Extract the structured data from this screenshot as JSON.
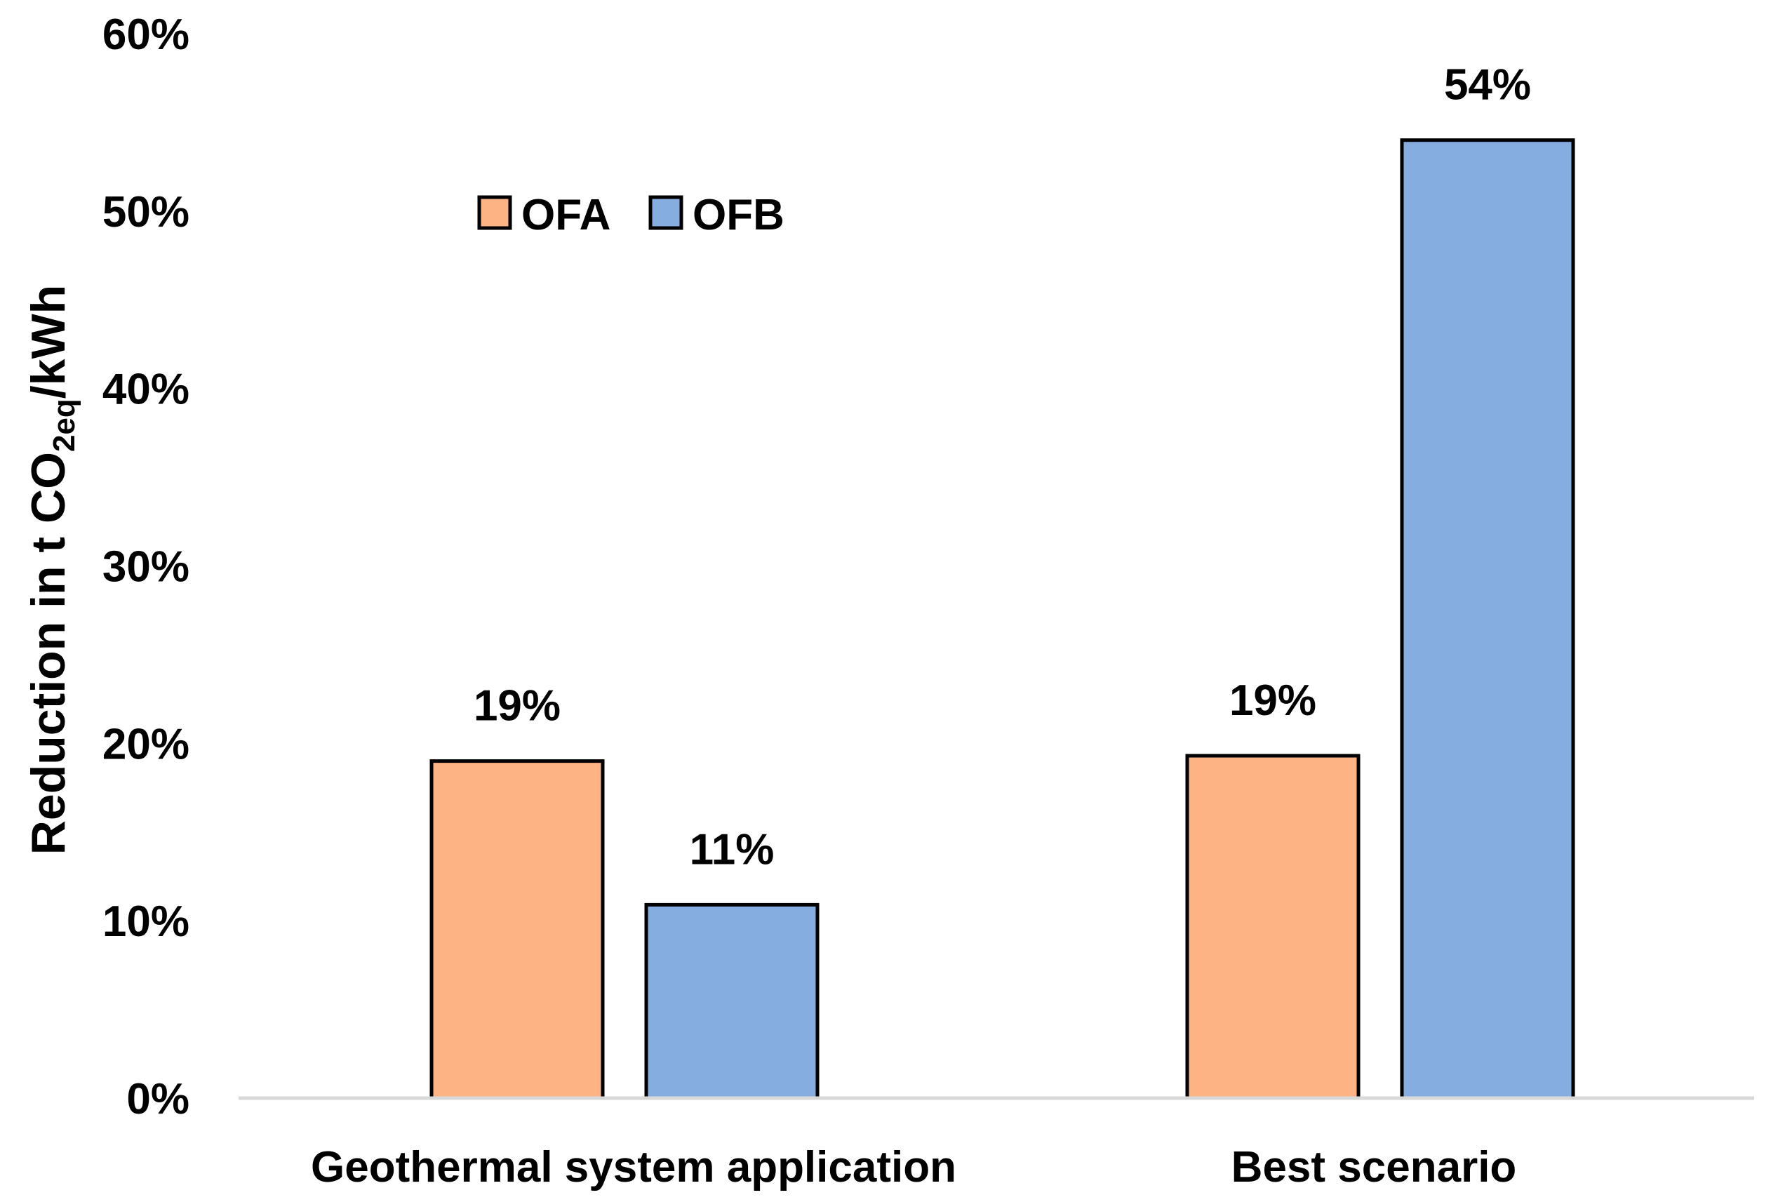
{
  "chart_data": {
    "type": "bar",
    "title": "",
    "categories": [
      "Geothermal system application",
      "Best scenario"
    ],
    "series": [
      {
        "name": "OFA",
        "values": [
          19,
          19.3
        ],
        "labels": [
          "19%",
          "19%"
        ],
        "color": "#FDB384"
      },
      {
        "name": "OFB",
        "values": [
          10.9,
          54
        ],
        "labels": [
          "11%",
          "54%"
        ],
        "color": "#85ADDF"
      }
    ],
    "ylabel": {
      "prefix": "Reduction in t  CO",
      "subscript": "2eq",
      "suffix": "/kWh"
    },
    "xlabel": "",
    "ylim": [
      0,
      60
    ],
    "yticks": [
      0,
      10,
      20,
      30,
      40,
      50,
      60
    ],
    "ytick_labels": [
      "0%",
      "10%",
      "20%",
      "30%",
      "40%",
      "50%",
      "60%"
    ],
    "grid": false,
    "legend": "upper-left inside plot",
    "axis_color": "#D9D9D9",
    "bar_border_color": "#000000"
  }
}
